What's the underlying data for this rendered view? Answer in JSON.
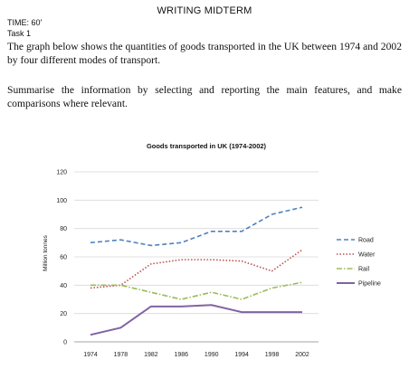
{
  "document": {
    "heading": "WRITING MIDTERM",
    "time": "TIME: 60'",
    "task": "Task 1",
    "paragraph1": "The graph below shows the quantities of goods transported in the UK between 1974 and 2002 by four different modes of transport.",
    "paragraph2": "Summarise the information by selecting and reporting the main features, and make comparisons where relevant."
  },
  "chart_data": {
    "type": "line",
    "title": "Goods transported in UK (1974-2002)",
    "xlabel": "",
    "ylabel": "Million tonnes",
    "x": [
      1974,
      1978,
      1982,
      1986,
      1990,
      1994,
      1998,
      2002
    ],
    "ylim": [
      0,
      120
    ],
    "yticks": [
      0,
      20,
      40,
      60,
      80,
      100,
      120
    ],
    "legend_position": "right",
    "grid": true,
    "series": [
      {
        "name": "Road",
        "color": "#4f81bd",
        "dash": "5,3",
        "values": [
          70,
          72,
          68,
          70,
          78,
          78,
          90,
          95
        ]
      },
      {
        "name": "Water",
        "color": "#c0504d",
        "dash": "1.5,2",
        "values": [
          38,
          40,
          55,
          58,
          58,
          57,
          50,
          65
        ]
      },
      {
        "name": "Rail",
        "color": "#9bbb59",
        "dash": "6,2,1.5,2",
        "values": [
          40,
          40,
          35,
          30,
          35,
          30,
          38,
          42
        ]
      },
      {
        "name": "Pipeline",
        "color": "#8064a2",
        "dash": "",
        "values": [
          5,
          10,
          25,
          25,
          26,
          21,
          21,
          21
        ]
      }
    ]
  }
}
